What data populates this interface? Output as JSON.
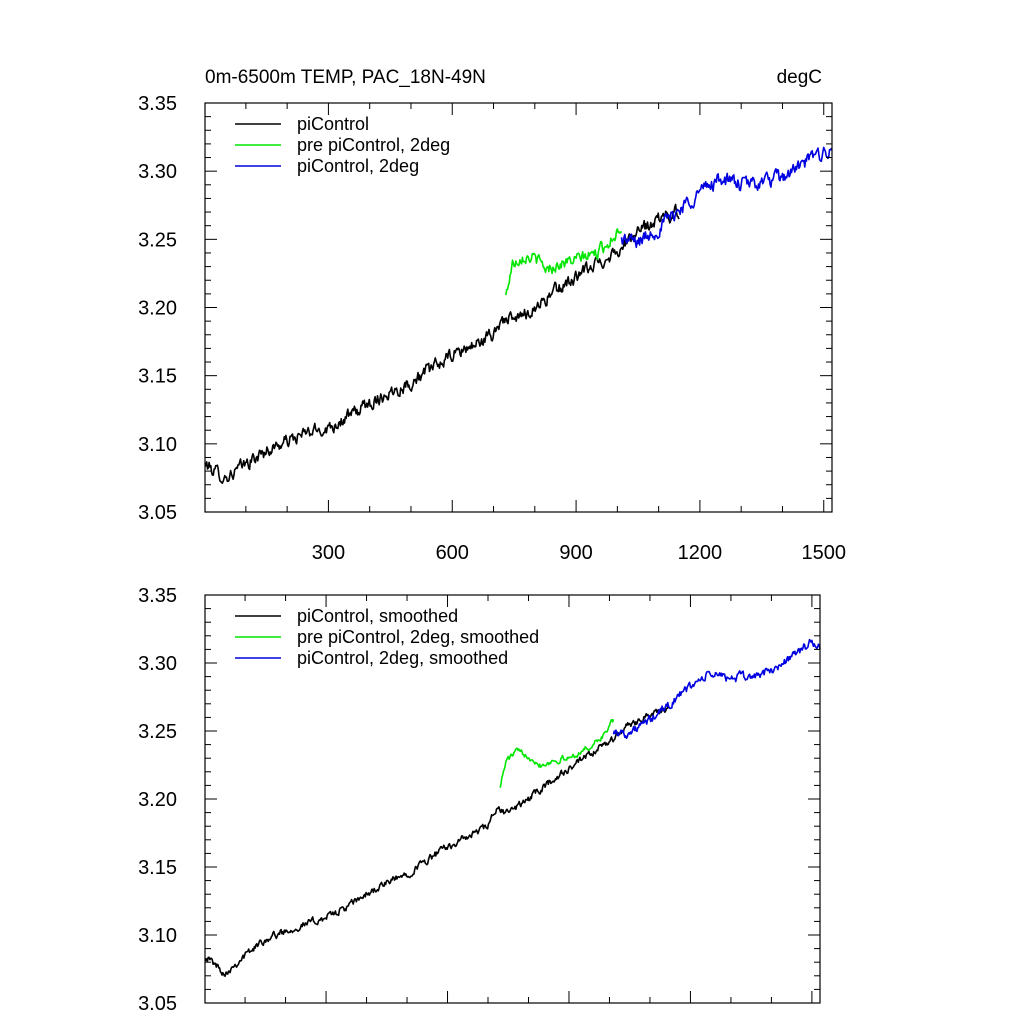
{
  "chart_data": [
    {
      "type": "line",
      "title": "0m-6500m TEMP, PAC_18N-49N",
      "units": "degC",
      "xlim": [
        1,
        1520
      ],
      "ylim": [
        3.05,
        3.35
      ],
      "xticks": [
        300,
        600,
        900,
        1200,
        1500
      ],
      "yticks": [
        3.05,
        3.1,
        3.15,
        3.2,
        3.25,
        3.3,
        3.35
      ],
      "ytick_labels": [
        "3.05",
        "3.10",
        "3.15",
        "3.20",
        "3.25",
        "3.30",
        "3.35"
      ],
      "show_xtick_labels": true,
      "legend_position": "top-left",
      "series": [
        {
          "name": "piControl",
          "color": "#000000",
          "x": [
            1,
            50,
            100,
            150,
            200,
            250,
            300,
            350,
            400,
            450,
            500,
            550,
            600,
            650,
            700,
            720,
            750,
            800,
            850,
            900,
            950,
            1000,
            1050,
            1100,
            1150
          ],
          "y": [
            3.085,
            3.075,
            3.085,
            3.095,
            3.102,
            3.108,
            3.112,
            3.12,
            3.13,
            3.138,
            3.145,
            3.155,
            3.165,
            3.172,
            3.18,
            3.192,
            3.19,
            3.2,
            3.212,
            3.222,
            3.232,
            3.242,
            3.255,
            3.265,
            3.27
          ],
          "noise": 0.009
        },
        {
          "name": "pre piControl, 2deg",
          "color": "#00e600",
          "x": [
            730,
            745,
            770,
            800,
            830,
            860,
            900,
            950,
            980,
            1010
          ],
          "y": [
            3.208,
            3.232,
            3.238,
            3.236,
            3.228,
            3.232,
            3.235,
            3.24,
            3.248,
            3.26
          ],
          "noise": 0.008
        },
        {
          "name": "piControl, 2deg",
          "color": "#0000e0",
          "x": [
            1010,
            1050,
            1100,
            1150,
            1200,
            1250,
            1300,
            1350,
            1400,
            1450,
            1500,
            1520
          ],
          "y": [
            3.25,
            3.248,
            3.258,
            3.272,
            3.285,
            3.295,
            3.29,
            3.292,
            3.295,
            3.305,
            3.315,
            3.313
          ],
          "noise": 0.01
        }
      ]
    },
    {
      "type": "line",
      "title": "",
      "units": "",
      "xlim": [
        1,
        1520
      ],
      "ylim": [
        3.05,
        3.35
      ],
      "xticks": [
        300,
        600,
        900,
        1200,
        1500
      ],
      "yticks": [
        3.05,
        3.1,
        3.15,
        3.2,
        3.25,
        3.3,
        3.35
      ],
      "ytick_labels": [
        "3.05",
        "3.10",
        "3.15",
        "3.20",
        "3.25",
        "3.30",
        "3.35"
      ],
      "show_xtick_labels": false,
      "legend_position": "top-left",
      "series": [
        {
          "name": "piControl, smoothed",
          "color": "#000000",
          "x": [
            1,
            50,
            100,
            150,
            200,
            250,
            300,
            350,
            400,
            450,
            500,
            550,
            600,
            650,
            700,
            720,
            750,
            800,
            850,
            900,
            950,
            1000,
            1050,
            1100,
            1150
          ],
          "y": [
            3.085,
            3.072,
            3.085,
            3.097,
            3.103,
            3.108,
            3.113,
            3.12,
            3.13,
            3.138,
            3.145,
            3.155,
            3.165,
            3.172,
            3.18,
            3.192,
            3.19,
            3.2,
            3.212,
            3.222,
            3.232,
            3.242,
            3.255,
            3.262,
            3.266
          ],
          "noise": 0.005
        },
        {
          "name": "pre piControl, 2deg, smoothed",
          "color": "#00e600",
          "x": [
            730,
            745,
            770,
            800,
            830,
            860,
            900,
            950,
            980,
            1010
          ],
          "y": [
            3.21,
            3.228,
            3.235,
            3.232,
            3.225,
            3.228,
            3.23,
            3.238,
            3.245,
            3.258
          ],
          "noise": 0.004
        },
        {
          "name": "piControl, 2deg, smoothed",
          "color": "#0000e0",
          "x": [
            1010,
            1050,
            1100,
            1150,
            1200,
            1250,
            1300,
            1350,
            1400,
            1450,
            1500,
            1520
          ],
          "y": [
            3.25,
            3.248,
            3.258,
            3.27,
            3.283,
            3.292,
            3.289,
            3.29,
            3.294,
            3.305,
            3.315,
            3.312
          ],
          "noise": 0.006
        }
      ]
    }
  ]
}
